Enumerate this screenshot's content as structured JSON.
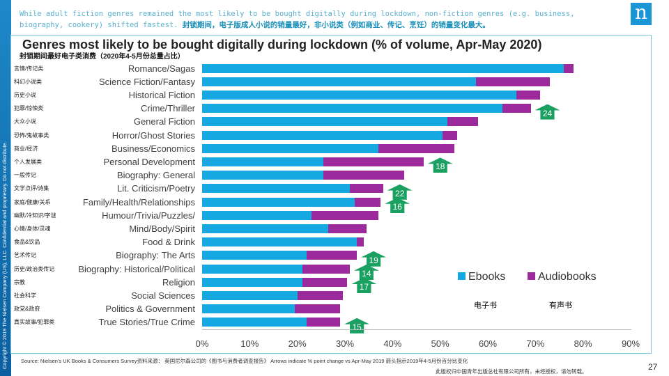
{
  "headline": {
    "en": "While adult fiction genres remained the most likely to be bought digitally during lockdown, non-fiction genres (e.g. business, biography, cookery) shifted fastest.",
    "cn": "封锁期间，电子版成人小说的销量最好，非小说类（例如商业、传记、烹饪）的销量变化最大。"
  },
  "logo": "n",
  "copyright": "Copyright © 2019 The Nielsen Company (US), LLC. Confidential and proprietary. Do not distribute.",
  "colors": {
    "ebooks": "#16a9e1",
    "audiobooks": "#9c2a9c",
    "arrow": "#1aa060",
    "brand": "#1a95d6"
  },
  "chart_data": {
    "type": "bar",
    "orientation": "horizontal",
    "stacked": true,
    "title": "Genres most likely to be bought digitally during lockdown (% of volume, Apr-May 2020)",
    "subtitle": "封锁期间最好电子类消费（2020年4-5月份总量占比）",
    "categories": [
      "Romance/Sagas",
      "Science Fiction/Fantasy",
      "Historical Fiction",
      "Crime/Thriller",
      "General Fiction",
      "Horror/Ghost Stories",
      "Business/Economics",
      "Personal Development",
      "Biography: General",
      "Lit. Criticism/Poetry",
      "Family/Health/Relationships",
      "Humour/Trivia/Puzzles/",
      "Mind/Body/Spirit",
      "Food & Drink",
      "Biography: The Arts",
      "Biography: Historical/Political",
      "Religion",
      "Social Sciences",
      "Politics & Government",
      "True Stories/True Crime"
    ],
    "categories_cn": [
      "言情/传记类",
      "科幻小说类",
      "历史小说",
      "犯罪/惊悚类",
      "大众小说",
      "恐怖/鬼故事类",
      "商业/经济",
      "个人发展类",
      "一般传记",
      "文学点评/诗集",
      "家庭/健康/关系",
      "幽默/冷知识/字谜",
      "心情/身体/灵魂",
      "食品&饮品",
      "艺术传记",
      "历史/政治类传记",
      "宗教",
      "社会科学",
      "政党&政府",
      "真实故事/犯罪类"
    ],
    "series": [
      {
        "name": "Ebooks",
        "name_cn": "电子书",
        "values": [
          76,
          57.5,
          66,
          63,
          51.5,
          50.5,
          37,
          25.5,
          25.5,
          31,
          32,
          23,
          26.5,
          32.5,
          22,
          21,
          21,
          20,
          19.5,
          22
        ]
      },
      {
        "name": "Audiobooks",
        "name_cn": "有声书",
        "values": [
          2,
          15.5,
          5,
          6,
          6.5,
          3,
          16,
          21,
          17,
          7,
          5.5,
          14,
          8,
          1.5,
          10.5,
          10,
          9.5,
          9.5,
          9.5,
          7
        ]
      }
    ],
    "arrows": [
      {
        "category": "Crime/Thriller",
        "value": 24
      },
      {
        "category": "Personal Development",
        "value": 18
      },
      {
        "category": "Lit. Criticism/Poetry",
        "value": 22
      },
      {
        "category": "Family/Health/Relationships",
        "value": 16
      },
      {
        "category": "Biography: The Arts",
        "value": 19
      },
      {
        "category": "Biography: Historical/Political",
        "value": 14
      },
      {
        "category": "Religion",
        "value": 17
      },
      {
        "category": "True Stories/True Crime",
        "value": 15
      }
    ],
    "xlim": [
      0,
      90
    ],
    "xticks": [
      "0%",
      "10%",
      "20%",
      "30%",
      "40%",
      "50%",
      "60%",
      "70%",
      "80%",
      "90%"
    ],
    "legend": "bottom-right"
  },
  "footer": {
    "source": "Source: Nielsen's UK Books & Consumers Survey资料来源： 英国尼尔森公司的《图书与消费者调查报告》 Arrows indicate % point change vs Apr-May 2019 箭头指示2019年4-5月份百分比变化",
    "rights": "此版权归中国青年出版总社有限公司所有，未经授权，请勿转载。",
    "page": "27"
  }
}
